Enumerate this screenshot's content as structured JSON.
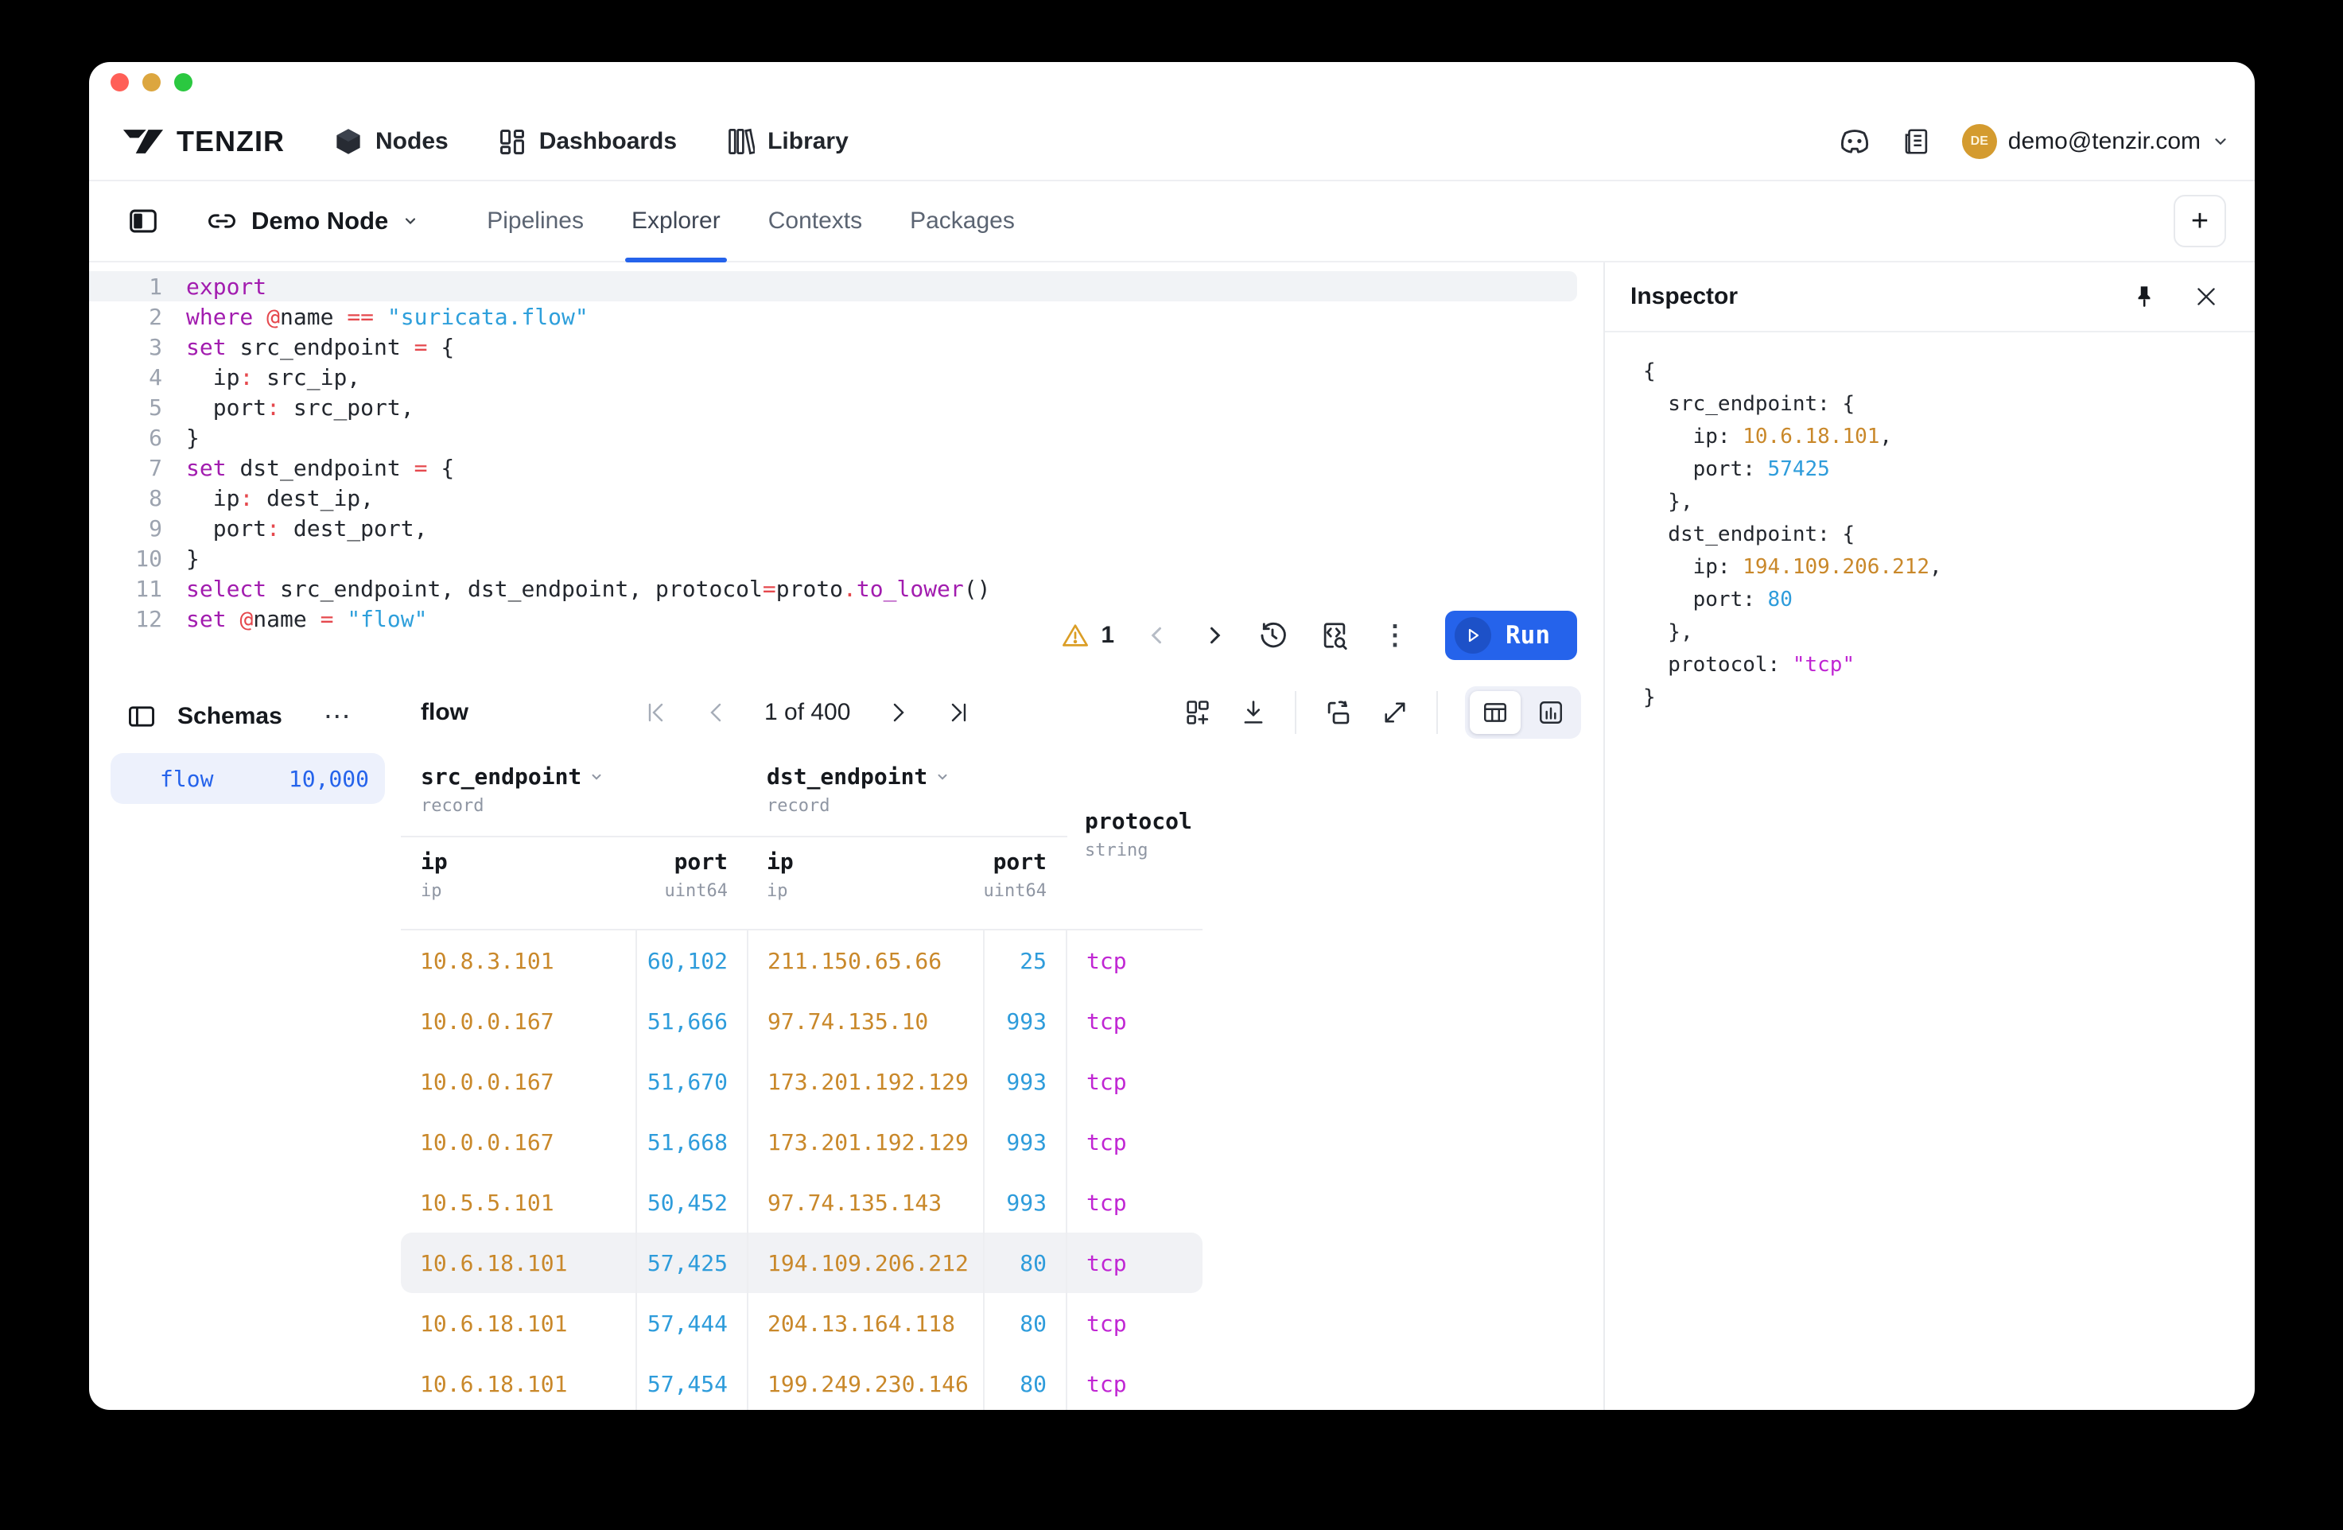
{
  "theme": {
    "accent": "#2563EB",
    "keyword": "#A21CAF",
    "operator": "#E5484D",
    "string": "#2E9FDB",
    "ip": "#C9882A",
    "port": "#2E9CDB",
    "protocol": "#C026D3",
    "warning": "#DB9E26",
    "avatar": "#D49B2F"
  },
  "app_header": {
    "brand": "TENZIR",
    "nav": [
      {
        "label": "Nodes",
        "icon": "cube-icon"
      },
      {
        "label": "Dashboards",
        "icon": "dashboards-icon"
      },
      {
        "label": "Library",
        "icon": "library-icon"
      }
    ],
    "user": {
      "email": "demo@tenzir.com",
      "avatar_initials": "DE"
    }
  },
  "node_bar": {
    "node_name": "Demo Node",
    "tabs": [
      {
        "label": "Pipelines",
        "active": false
      },
      {
        "label": "Explorer",
        "active": true
      },
      {
        "label": "Contexts",
        "active": false
      },
      {
        "label": "Packages",
        "active": false
      }
    ],
    "new_tab_label": "+"
  },
  "editor": {
    "lines": [
      {
        "num": "1",
        "active": true,
        "tokens": [
          {
            "t": "export",
            "c": "kw"
          }
        ]
      },
      {
        "num": "2",
        "tokens": [
          {
            "t": "where ",
            "c": "kw"
          },
          {
            "t": "@",
            "c": "op"
          },
          {
            "t": "name ",
            "c": "plain"
          },
          {
            "t": "== ",
            "c": "op"
          },
          {
            "t": "\"suricata.flow\"",
            "c": "str"
          }
        ]
      },
      {
        "num": "3",
        "tokens": [
          {
            "t": "set ",
            "c": "kw"
          },
          {
            "t": "src_endpoint ",
            "c": "plain"
          },
          {
            "t": "= ",
            "c": "op"
          },
          {
            "t": "{",
            "c": "plain"
          }
        ]
      },
      {
        "num": "4",
        "tokens": [
          {
            "t": "  ip",
            "c": "plain"
          },
          {
            "t": ":",
            "c": "op"
          },
          {
            "t": " src_ip,",
            "c": "plain"
          }
        ]
      },
      {
        "num": "5",
        "tokens": [
          {
            "t": "  port",
            "c": "plain"
          },
          {
            "t": ":",
            "c": "op"
          },
          {
            "t": " src_port,",
            "c": "plain"
          }
        ]
      },
      {
        "num": "6",
        "tokens": [
          {
            "t": "}",
            "c": "plain"
          }
        ]
      },
      {
        "num": "7",
        "tokens": [
          {
            "t": "set ",
            "c": "kw"
          },
          {
            "t": "dst_endpoint ",
            "c": "plain"
          },
          {
            "t": "= ",
            "c": "op"
          },
          {
            "t": "{",
            "c": "plain"
          }
        ]
      },
      {
        "num": "8",
        "tokens": [
          {
            "t": "  ip",
            "c": "plain"
          },
          {
            "t": ":",
            "c": "op"
          },
          {
            "t": " dest_ip,",
            "c": "plain"
          }
        ]
      },
      {
        "num": "9",
        "tokens": [
          {
            "t": "  port",
            "c": "plain"
          },
          {
            "t": ":",
            "c": "op"
          },
          {
            "t": " dest_port,",
            "c": "plain"
          }
        ]
      },
      {
        "num": "10",
        "tokens": [
          {
            "t": "}",
            "c": "plain"
          }
        ]
      },
      {
        "num": "11",
        "tokens": [
          {
            "t": "select ",
            "c": "kw"
          },
          {
            "t": "src_endpoint, dst_endpoint, protocol",
            "c": "plain"
          },
          {
            "t": "=",
            "c": "op"
          },
          {
            "t": "proto",
            "c": "plain"
          },
          {
            "t": ".",
            "c": "op"
          },
          {
            "t": "to_lower",
            "c": "kw"
          },
          {
            "t": "()",
            "c": "plain"
          }
        ]
      },
      {
        "num": "12",
        "tokens": [
          {
            "t": "set ",
            "c": "kw"
          },
          {
            "t": "@",
            "c": "op"
          },
          {
            "t": "name ",
            "c": "plain"
          },
          {
            "t": "= ",
            "c": "op"
          },
          {
            "t": "\"flow\"",
            "c": "str"
          }
        ]
      }
    ],
    "diagnostics": {
      "warning_count": "1"
    },
    "run_button": {
      "label": "Run"
    },
    "menu_glyph": "⋮"
  },
  "schemas_panel": {
    "title": "Schemas",
    "menu_glyph": "⋯",
    "items": [
      {
        "name": "flow",
        "count": "10,000",
        "selected": true
      }
    ]
  },
  "results": {
    "title": "flow",
    "pagination": {
      "current_page_label": "1 of 400"
    },
    "table": {
      "groups": [
        {
          "label": "src_endpoint",
          "type": "record"
        },
        {
          "label": "dst_endpoint",
          "type": "record"
        },
        {
          "label": "protocol",
          "type": "string"
        }
      ],
      "subcolumns": [
        {
          "label": "ip",
          "type": "ip"
        },
        {
          "label": "port",
          "type": "uint64"
        },
        {
          "label": "ip",
          "type": "ip"
        },
        {
          "label": "port",
          "type": "uint64"
        }
      ],
      "rows": [
        {
          "src_ip": "10.8.3.101",
          "src_port": "60,102",
          "dst_ip": "211.150.65.66",
          "dst_port": "25",
          "protocol": "tcp",
          "selected": false
        },
        {
          "src_ip": "10.0.0.167",
          "src_port": "51,666",
          "dst_ip": "97.74.135.10",
          "dst_port": "993",
          "protocol": "tcp",
          "selected": false
        },
        {
          "src_ip": "10.0.0.167",
          "src_port": "51,670",
          "dst_ip": "173.201.192.129",
          "dst_port": "993",
          "protocol": "tcp",
          "selected": false
        },
        {
          "src_ip": "10.0.0.167",
          "src_port": "51,668",
          "dst_ip": "173.201.192.129",
          "dst_port": "993",
          "protocol": "tcp",
          "selected": false
        },
        {
          "src_ip": "10.5.5.101",
          "src_port": "50,452",
          "dst_ip": "97.74.135.143",
          "dst_port": "993",
          "protocol": "tcp",
          "selected": false
        },
        {
          "src_ip": "10.6.18.101",
          "src_port": "57,425",
          "dst_ip": "194.109.206.212",
          "dst_port": "80",
          "protocol": "tcp",
          "selected": true
        },
        {
          "src_ip": "10.6.18.101",
          "src_port": "57,444",
          "dst_ip": "204.13.164.118",
          "dst_port": "80",
          "protocol": "tcp",
          "selected": false
        },
        {
          "src_ip": "10.6.18.101",
          "src_port": "57,454",
          "dst_ip": "199.249.230.146",
          "dst_port": "80",
          "protocol": "tcp",
          "selected": false
        }
      ]
    }
  },
  "inspector": {
    "title": "Inspector",
    "lines": [
      {
        "tokens": [
          {
            "t": "{",
            "c": "k"
          }
        ]
      },
      {
        "tokens": [
          {
            "t": "  src_endpoint: {",
            "c": "k"
          }
        ]
      },
      {
        "tokens": [
          {
            "t": "    ip: ",
            "c": "k"
          },
          {
            "t": "10.6.18.101",
            "c": "ip"
          },
          {
            "t": ",",
            "c": "k"
          }
        ]
      },
      {
        "tokens": [
          {
            "t": "    port: ",
            "c": "k"
          },
          {
            "t": "57425",
            "c": "num"
          }
        ]
      },
      {
        "tokens": [
          {
            "t": "  },",
            "c": "k"
          }
        ]
      },
      {
        "tokens": [
          {
            "t": "  dst_endpoint: {",
            "c": "k"
          }
        ]
      },
      {
        "tokens": [
          {
            "t": "    ip: ",
            "c": "k"
          },
          {
            "t": "194.109.206.212",
            "c": "ip"
          },
          {
            "t": ",",
            "c": "k"
          }
        ]
      },
      {
        "tokens": [
          {
            "t": "    port: ",
            "c": "k"
          },
          {
            "t": "80",
            "c": "num"
          }
        ]
      },
      {
        "tokens": [
          {
            "t": "  },",
            "c": "k"
          }
        ]
      },
      {
        "tokens": [
          {
            "t": "  protocol: ",
            "c": "k"
          },
          {
            "t": "\"tcp\"",
            "c": "jstr"
          }
        ]
      },
      {
        "tokens": [
          {
            "t": "}",
            "c": "k"
          }
        ]
      }
    ]
  }
}
